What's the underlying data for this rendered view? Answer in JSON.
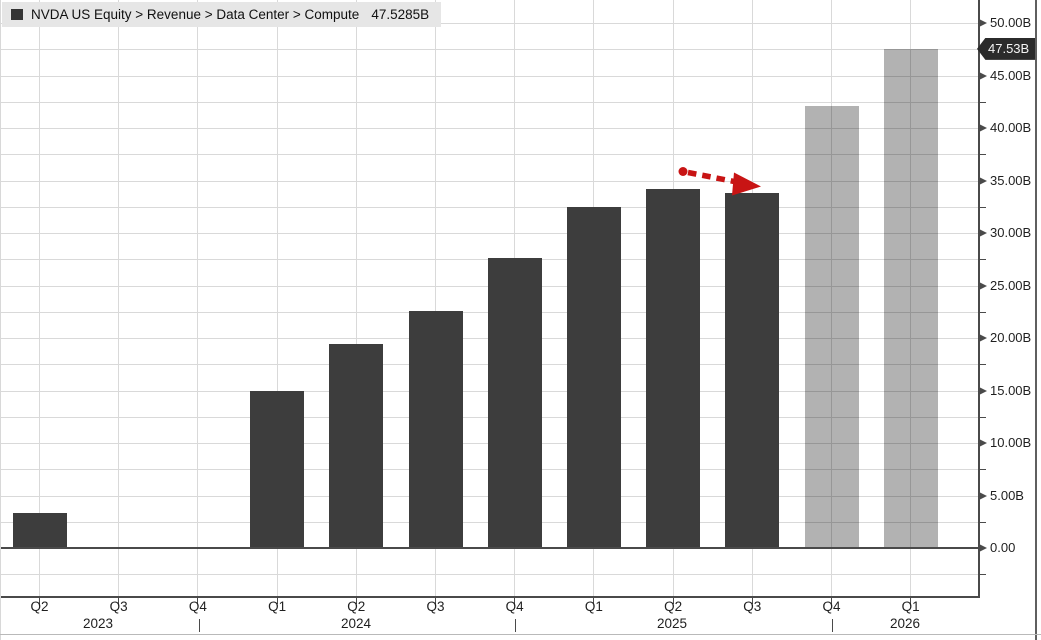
{
  "header": {
    "breadcrumb": "NVDA US Equity > Revenue > Data Center > Compute",
    "last_value": "47.5285B",
    "series_marker": "square-swatch"
  },
  "axis_tag": {
    "label": "47.53B",
    "value": 47.53
  },
  "chart_data": {
    "type": "bar",
    "title": "NVDA US Equity > Revenue > Data Center > Compute",
    "unit": "USD billions",
    "legend_position": "top-left",
    "grid": true,
    "ylim": [
      -4.5,
      51.9
    ],
    "y_minor_step": 2.5,
    "categories": [
      "Q2",
      "Q3",
      "Q4",
      "Q1",
      "Q2",
      "Q3",
      "Q4",
      "Q1",
      "Q2",
      "Q3",
      "Q4",
      "Q1"
    ],
    "years": [
      "2023",
      "2024",
      "2025",
      "2026"
    ],
    "series": [
      {
        "name": "Data Center Compute Revenue",
        "points": [
          {
            "label": "Q2 2023",
            "value": 3.3,
            "estimate": false
          },
          {
            "label": "Q3 2023",
            "value": null,
            "estimate": false
          },
          {
            "label": "Q4 2023",
            "value": null,
            "estimate": false
          },
          {
            "label": "Q1 2024",
            "value": 15.0,
            "estimate": false
          },
          {
            "label": "Q2 2024",
            "value": 19.4,
            "estimate": false
          },
          {
            "label": "Q3 2024",
            "value": 22.6,
            "estimate": false
          },
          {
            "label": "Q4 2024",
            "value": 27.6,
            "estimate": false
          },
          {
            "label": "Q1 2025",
            "value": 32.5,
            "estimate": false
          },
          {
            "label": "Q2 2025",
            "value": 34.2,
            "estimate": false
          },
          {
            "label": "Q3 2025",
            "value": 33.8,
            "estimate": false
          },
          {
            "label": "Q4 2025",
            "value": 42.1,
            "estimate": true
          },
          {
            "label": "Q1 2026",
            "value": 47.53,
            "estimate": true
          }
        ]
      }
    ],
    "y_axis_ticks": [
      {
        "value": 50,
        "label": "50.00B"
      },
      {
        "value": 45,
        "label": "45.00B"
      },
      {
        "value": 40,
        "label": "40.00B"
      },
      {
        "value": 35,
        "label": "35.00B"
      },
      {
        "value": 30,
        "label": "30.00B"
      },
      {
        "value": 25,
        "label": "25.00B"
      },
      {
        "value": 20,
        "label": "20.00B"
      },
      {
        "value": 15,
        "label": "15.00B"
      },
      {
        "value": 10,
        "label": "10.00B"
      },
      {
        "value": 5,
        "label": "5.00B"
      },
      {
        "value": 0,
        "label": "0.00"
      }
    ],
    "annotation": {
      "type": "dashed-arrow",
      "from_point": "Q2 2025",
      "to_point": "Q3 2025",
      "description": "highlights quarter-over-quarter decline"
    }
  },
  "colors": {
    "actual_bar": "#3d3d3d",
    "estimate_bar": "#b2b2b2",
    "grid": "#d9d9d9",
    "axis": "#4a4a4a",
    "label_text": "#1f1f1f",
    "header_bg": "#e6e6e6",
    "tag_bg": "#2b2b2b",
    "tag_text": "#f4f4f4",
    "arrow": "#c81414"
  }
}
